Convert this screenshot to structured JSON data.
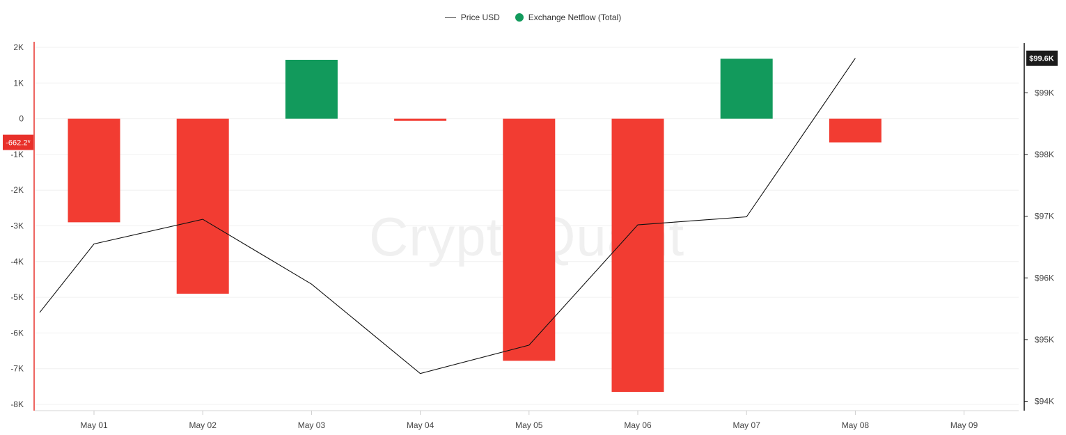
{
  "legend": {
    "price_label": "Price USD",
    "netflow_label": "Exchange Netflow (Total)"
  },
  "watermark": "CryptoQuant",
  "colors": {
    "positive": "#129a5c",
    "negative": "#f23c32",
    "price_line": "#111111",
    "left_axis": "#e8302a",
    "right_axis": "#111111",
    "grid": "#f0f0f0"
  },
  "chart_data": {
    "type": "bar",
    "x_ticks": [
      "May 01",
      "May 02",
      "May 03",
      "May 04",
      "May 05",
      "May 06",
      "May 07",
      "May 08",
      "May 09"
    ],
    "left_axis": {
      "ticks": [
        "2K",
        "1K",
        "0",
        "-1K",
        "-2K",
        "-3K",
        "-4K",
        "-5K",
        "-6K",
        "-7K",
        "-8K"
      ],
      "ylim": [
        -8000,
        2000
      ],
      "current_value_label": "-662.2*"
    },
    "right_axis": {
      "ticks": [
        "$99K",
        "$98K",
        "$97K",
        "$96K",
        "$95K",
        "$94K"
      ],
      "ylim": [
        93950,
        99850
      ],
      "current_value_label": "$99.6K"
    },
    "series": [
      {
        "name": "Exchange Netflow (Total)",
        "type": "bar",
        "axis": "left",
        "values": [
          -2900,
          -4900,
          1650,
          -60,
          -6780,
          -7650,
          1680,
          -662.2
        ]
      },
      {
        "name": "Price USD",
        "type": "line",
        "axis": "right",
        "x_start": "May 01",
        "values": [
          95440,
          96550,
          96950,
          95900,
          94450,
          94910,
          96860,
          96990,
          99560
        ]
      }
    ],
    "grid": true,
    "legend_position": "top-center"
  }
}
